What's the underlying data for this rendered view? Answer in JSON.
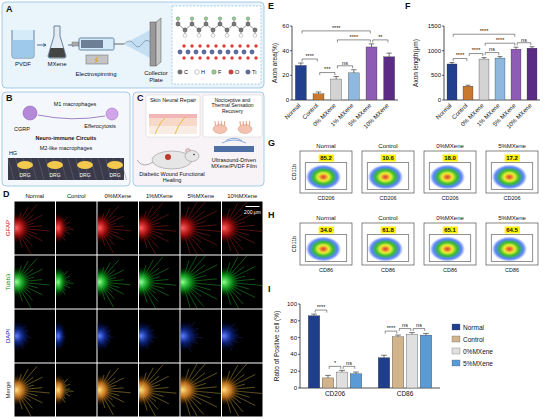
{
  "diagram": {
    "A": {
      "letter": "A",
      "pvdf": "PVDF",
      "mxene": "MXene",
      "electrospinning": "Electrospinning",
      "collector": "Collector Plate",
      "atoms": [
        "C",
        "H",
        "F",
        "O",
        "Ti"
      ]
    },
    "B": {
      "letter": "B",
      "m1": "M1 macrophages",
      "efferocytosis": "Efferocytosis",
      "cgrp": "CGRP",
      "circuits": "Neuro-immune Circuits",
      "m2": "M2-like macrophages",
      "hg": "HG",
      "drg": [
        "DRG",
        "DRG",
        "DRG",
        "DRG"
      ]
    },
    "C": {
      "letter": "C",
      "skin": "Skin Neural Repair",
      "sensation": "Nociceptive and Thermal Sensation Recovery",
      "healing": "Diabetic Wound Functional Healing",
      "film": "Ultrasound-Driven MXene/PVDF Film"
    }
  },
  "microscopy": {
    "letter": "D",
    "columns": [
      "Normal",
      "Control",
      "0%MXene",
      "1%MXene",
      "5%MXene",
      "10%MXene"
    ],
    "rows": [
      "GFAP",
      "Tubb3",
      "DAPI",
      "Merge"
    ],
    "scale_bar": "200 μm"
  },
  "chart_data": [
    {
      "panel": "E",
      "type": "bar",
      "ylabel": "Axon area(%)",
      "categories": [
        "Normal",
        "Control",
        "0% MXene",
        "1% MXene",
        "5% MXene",
        "10% MXene"
      ],
      "values": [
        28,
        5,
        17,
        22,
        43,
        35
      ],
      "errors": [
        2,
        1.5,
        2,
        2.5,
        2.5,
        3
      ],
      "colors": [
        "#23408e",
        "#c9782f",
        "#d3d3d3",
        "#8fb8de",
        "#8e5bb5",
        "#5b2c83"
      ],
      "ylim": [
        0,
        60
      ],
      "yticks": [
        0,
        20,
        40,
        60
      ],
      "annotations": [
        {
          "text": "****",
          "from": 0,
          "to": 1
        },
        {
          "text": "***",
          "from": 1,
          "to": 2
        },
        {
          "text": "ns",
          "from": 2,
          "to": 3
        },
        {
          "text": "****",
          "from": 2,
          "to": 4
        },
        {
          "text": "**",
          "from": 4,
          "to": 5
        },
        {
          "text": "****",
          "from": 0,
          "to": 4
        }
      ]
    },
    {
      "panel": "F",
      "type": "bar",
      "ylabel": "Axon length(μm)",
      "categories": [
        "Normal",
        "Control",
        "0% MXene",
        "1% MXene",
        "5% MXene",
        "10% MXene"
      ],
      "values": [
        730,
        280,
        830,
        850,
        1030,
        1050
      ],
      "errors": [
        30,
        20,
        30,
        30,
        40,
        30
      ],
      "colors": [
        "#23408e",
        "#c9782f",
        "#d3d3d3",
        "#8fb8de",
        "#8e5bb5",
        "#5b2c83"
      ],
      "ylim": [
        0,
        1500
      ],
      "yticks": [
        0,
        500,
        1000,
        1500
      ],
      "annotations": [
        {
          "text": "****",
          "from": 0,
          "to": 1
        },
        {
          "text": "****",
          "from": 1,
          "to": 2
        },
        {
          "text": "ns",
          "from": 2,
          "to": 3
        },
        {
          "text": "****",
          "from": 2,
          "to": 4
        },
        {
          "text": "ns",
          "from": 4,
          "to": 5
        },
        {
          "text": "****",
          "from": 0,
          "to": 4
        }
      ]
    },
    {
      "panel": "I",
      "type": "bar",
      "ylabel": "Ratio of Positive cell (%)",
      "categories": [
        "CD206",
        "CD86"
      ],
      "series": [
        {
          "name": "Normal",
          "color": "#1f3f8c",
          "values": [
            86,
            36
          ],
          "errors": [
            2,
            3
          ]
        },
        {
          "name": "Control",
          "color": "#d2b48c",
          "values": [
            12,
            61
          ],
          "errors": [
            3,
            2
          ]
        },
        {
          "name": "0%MXene",
          "color": "#e0e0e0",
          "values": [
            19,
            64
          ],
          "errors": [
            2,
            2
          ]
        },
        {
          "name": "5%MXene",
          "color": "#5b9bd5",
          "values": [
            17,
            63
          ],
          "errors": [
            2,
            2
          ]
        }
      ],
      "ylim": [
        0,
        100
      ],
      "yticks": [
        0,
        20,
        40,
        60,
        80,
        100
      ],
      "legend": "right",
      "annotations": [
        {
          "text": "****",
          "group": 0,
          "from": 0,
          "to": 1
        },
        {
          "text": "*",
          "group": 0,
          "from": 1,
          "to": 2
        },
        {
          "text": "ns",
          "group": 0,
          "from": 2,
          "to": 3
        },
        {
          "text": "****",
          "group": 1,
          "from": 0,
          "to": 1
        },
        {
          "text": "ns",
          "group": 1,
          "from": 1,
          "to": 2
        },
        {
          "text": "ns",
          "group": 1,
          "from": 2,
          "to": 3
        }
      ]
    }
  ],
  "flow_cytometry": [
    {
      "letter": "G",
      "x_label": "CD206",
      "y_label": "CD11b",
      "plots": [
        {
          "title": "Normal",
          "percent": "85.2"
        },
        {
          "title": "Control",
          "percent": "10.6"
        },
        {
          "title": "0%MXene",
          "percent": "18.0"
        },
        {
          "title": "5%MXene",
          "percent": "17.2"
        }
      ]
    },
    {
      "letter": "H",
      "x_label": "CD86",
      "y_label": "CD11b",
      "plots": [
        {
          "title": "Normal",
          "percent": "34.0"
        },
        {
          "title": "Control",
          "percent": "61.8"
        },
        {
          "title": "0%MXene",
          "percent": "65.1"
        },
        {
          "title": "5%MXene",
          "percent": "64.5"
        }
      ]
    }
  ]
}
